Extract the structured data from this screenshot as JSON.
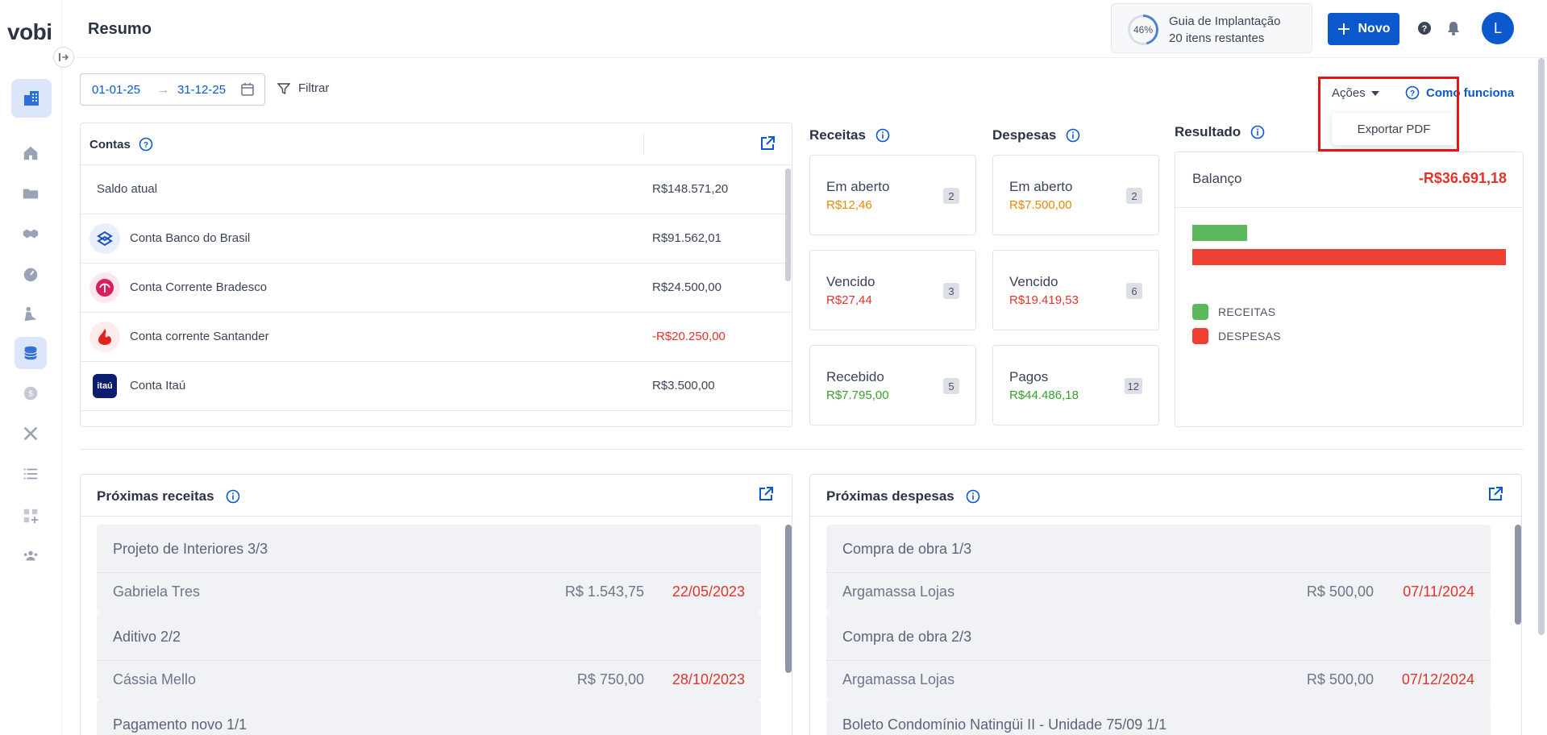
{
  "app": {
    "logo": "vobi",
    "page_title": "Resumo"
  },
  "header": {
    "guide": {
      "percent": "46%",
      "progress": 0.46,
      "title": "Guia de Implantação",
      "subtitle": "20 itens restantes"
    },
    "new_button": "Novo",
    "avatar": "L"
  },
  "filters": {
    "date_start": "01-01-25",
    "date_end": "31-12-25",
    "filter_label": "Filtrar",
    "actions_label": "Ações",
    "help_label": "Como funciona",
    "dropdown_item": "Exportar PDF"
  },
  "contas": {
    "title": "Contas",
    "rows": [
      {
        "label": "Saldo atual",
        "value": "R$148.571,20"
      },
      {
        "label": "Conta Banco do Brasil",
        "value": "R$91.562,01",
        "icon": "banco-do-brasil-icon"
      },
      {
        "label": "Conta Corrente Bradesco",
        "value": "R$24.500,00",
        "icon": "bradesco-icon"
      },
      {
        "label": "Conta corrente Santander",
        "value": "-R$20.250,00",
        "icon": "santander-icon"
      },
      {
        "label": "Conta Itaú",
        "value": "R$3.500,00",
        "icon": "itau-icon",
        "icon_text": "itaú"
      }
    ]
  },
  "receitas": {
    "title": "Receitas",
    "stats": [
      {
        "label": "Em aberto",
        "value": "R$12,46",
        "count": "2"
      },
      {
        "label": "Vencido",
        "value": "R$27,44",
        "count": "3"
      },
      {
        "label": "Recebido",
        "value": "R$7.795,00",
        "count": "5"
      }
    ]
  },
  "despesas": {
    "title": "Despesas",
    "stats": [
      {
        "label": "Em aberto",
        "value": "R$7.500,00",
        "count": "2"
      },
      {
        "label": "Vencido",
        "value": "R$19.419,53",
        "count": "6"
      },
      {
        "label": "Pagos",
        "value": "R$44.486,18",
        "count": "12"
      }
    ]
  },
  "resultado": {
    "title": "Resultado",
    "balance_label": "Balanço",
    "balance_value": "-R$36.691,18",
    "receitas_ratio": 0.175,
    "legend": [
      "RECEITAS",
      "DESPESAS"
    ],
    "colors": {
      "receitas": "#5cb85c",
      "despesas": "#ee3f33"
    }
  },
  "proximas_receitas": {
    "title": "Próximas receitas",
    "items": [
      {
        "title": "Projeto de Interiores 3/3",
        "who": "Gabriela Tres",
        "amount": "R$ 1.543,75",
        "date": "22/05/2023"
      },
      {
        "title": "Aditivo 2/2",
        "who": "Cássia Mello",
        "amount": "R$ 750,00",
        "date": "28/10/2023"
      },
      {
        "title": "Pagamento novo 1/1"
      }
    ]
  },
  "proximas_despesas": {
    "title": "Próximas despesas",
    "items": [
      {
        "title": "Compra de obra 1/3",
        "who": "Argamassa Lojas",
        "amount": "R$ 500,00",
        "date": "07/11/2024"
      },
      {
        "title": "Compra de obra 2/3",
        "who": "Argamassa Lojas",
        "amount": "R$ 500,00",
        "date": "07/12/2024"
      },
      {
        "title": "Boleto Condomínio Natingüi II - Unidade 75/09 1/1"
      }
    ]
  },
  "colors": {
    "primary": "#0b58cc",
    "negative": "#e0342b",
    "positive": "#389e2c",
    "pending": "#e58a00"
  }
}
